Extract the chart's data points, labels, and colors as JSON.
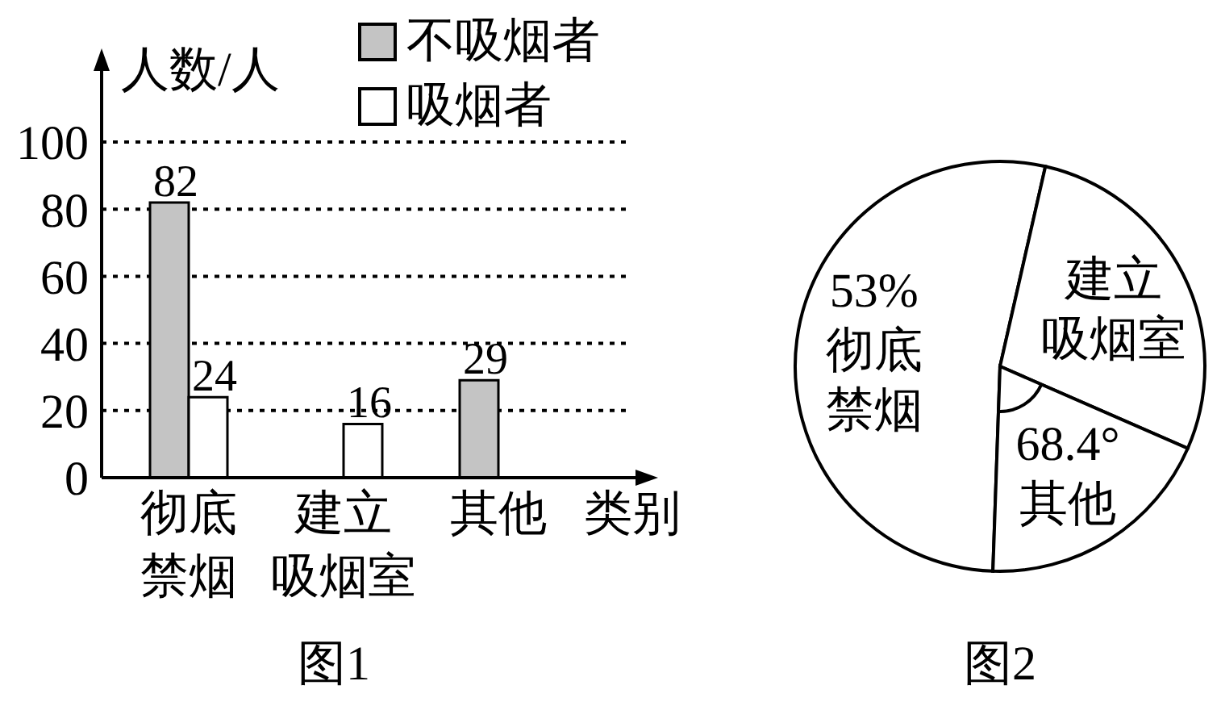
{
  "chart_data": [
    {
      "type": "bar",
      "title": "图1",
      "xlabel": "类别",
      "ylabel": "人数/人",
      "categories": [
        "彻底禁烟",
        "建立吸烟室",
        "其他"
      ],
      "series": [
        {
          "name": "不吸烟者",
          "color": "#c4c4c4",
          "values": [
            82,
            null,
            29
          ]
        },
        {
          "name": "吸烟者",
          "color": "#ffffff",
          "values": [
            24,
            16,
            null
          ]
        }
      ],
      "ylim": [
        0,
        100
      ],
      "yticks": [
        0,
        20,
        40,
        60,
        80,
        100
      ],
      "grid": "y",
      "legend": "top",
      "data_labels": true
    },
    {
      "type": "pie",
      "title": "图2",
      "categories": [
        "彻底禁烟",
        "建立吸烟室",
        "其他"
      ],
      "values": [
        53,
        28,
        19
      ],
      "colors": [
        "#ffffff",
        "#ffffff",
        "#ffffff"
      ],
      "value_labels": [
        "53%",
        null,
        null
      ],
      "annotations": [
        "68.4°"
      ]
    }
  ]
}
